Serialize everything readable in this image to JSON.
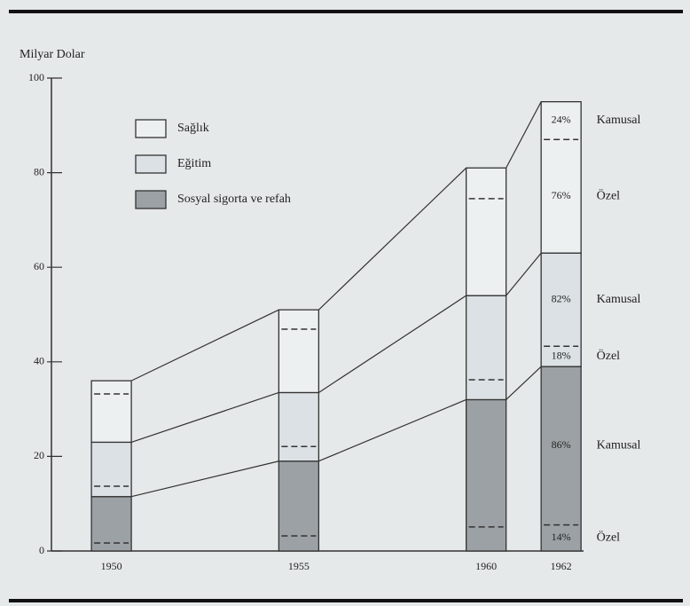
{
  "chart_data": {
    "type": "stacked_bar",
    "y_label": "Milyar Dolar",
    "x": [
      1950,
      1955,
      1960,
      1962
    ],
    "xlim": [
      1948.4,
      1962.6
    ],
    "ylim": [
      0,
      100
    ],
    "yticks": [
      0,
      20,
      40,
      60,
      80,
      100
    ],
    "public_text": "Kamusal",
    "private_text": "Özel",
    "series": [
      {
        "name": "Sosyal sigorta ve refah",
        "color": "#9ca1a5",
        "values": [
          11.5,
          19,
          32,
          39
        ],
        "private_values": [
          1.7,
          3.2,
          5.1,
          5.5
        ],
        "public_label": "86%",
        "private_label": "14%"
      },
      {
        "name": "Eğitim",
        "color": "#dbe1e4",
        "values": [
          11.5,
          14.5,
          22,
          24
        ],
        "private_values": [
          2.2,
          3.1,
          4.2,
          4.3
        ],
        "public_label": "82%",
        "private_label": "18%"
      },
      {
        "name": "Sağlık",
        "color": "#edf0f1",
        "values": [
          13,
          17.5,
          27,
          32
        ],
        "private_values": [
          10.2,
          13.4,
          20.5,
          24
        ],
        "public_label": "24%",
        "private_label": "76%"
      }
    ]
  }
}
